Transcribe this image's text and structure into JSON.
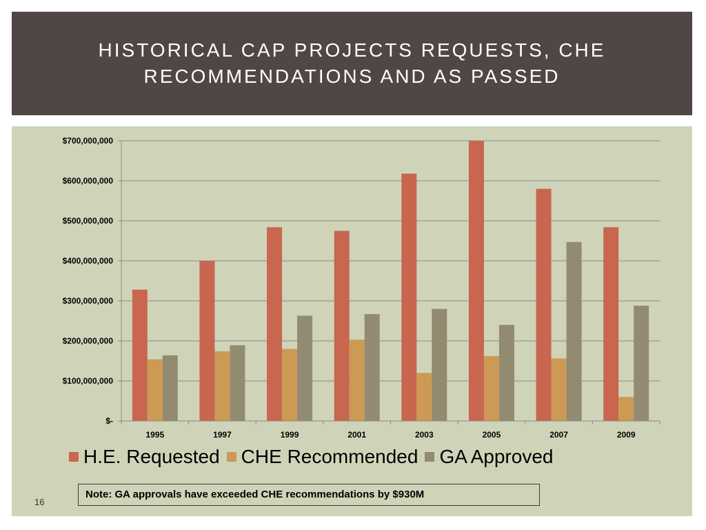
{
  "slide": {
    "title": "HISTORICAL CAP PROJECTS REQUESTS, CHE RECOMMENDATIONS AND AS PASSED",
    "note": "Note: GA approvals have exceeded CHE recommendations by $930M",
    "page_number": "16"
  },
  "colors": {
    "title_bg": "#504643",
    "chart_bg": "#cfd4b9"
  },
  "chart_data": {
    "type": "bar",
    "title": "",
    "xlabel": "",
    "ylabel": "",
    "categories": [
      "1995",
      "1997",
      "1999",
      "2001",
      "2003",
      "2005",
      "2007",
      "2009"
    ],
    "ylim": [
      0,
      700000000
    ],
    "y_ticks": [
      0,
      100000000,
      200000000,
      300000000,
      400000000,
      500000000,
      600000000,
      700000000
    ],
    "y_tick_labels": [
      "$-",
      "$100,000,000",
      "$200,000,000",
      "$300,000,000",
      "$400,000,000",
      "$500,000,000",
      "$600,000,000",
      "$700,000,000"
    ],
    "grid": true,
    "legend": "bottom",
    "series": [
      {
        "name": "H.E. Requested",
        "color": "#c8664f",
        "values": [
          328000000,
          400000000,
          484000000,
          475000000,
          618000000,
          700000000,
          580000000,
          484000000
        ]
      },
      {
        "name": "CHE Recommended",
        "color": "#cc9a55",
        "values": [
          154000000,
          174000000,
          180000000,
          203000000,
          120000000,
          162000000,
          156000000,
          60000000
        ]
      },
      {
        "name": "GA Approved",
        "color": "#938a72",
        "values": [
          164000000,
          189000000,
          263000000,
          267000000,
          280000000,
          240000000,
          447000000,
          288000000
        ]
      }
    ]
  }
}
